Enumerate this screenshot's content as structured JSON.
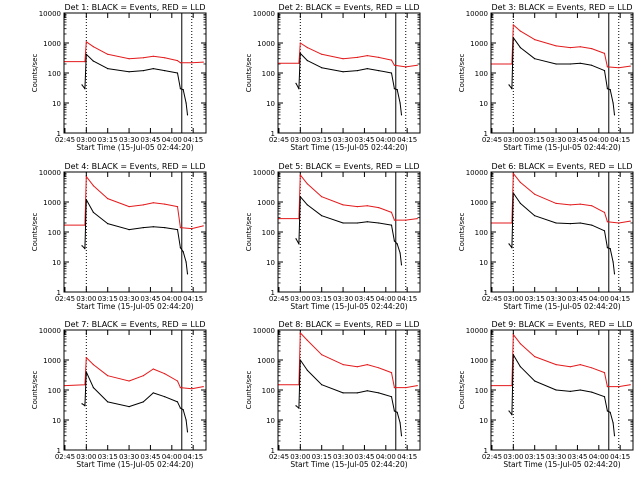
{
  "chart_data": {
    "type": "line",
    "layout": "3x3 grid of panels",
    "shared": {
      "ylabel": "Counts/sec",
      "xlabel": "Start Time (15-Jul-05 02:44:20)",
      "x_ticks": [
        "02:45",
        "03:00",
        "03:15",
        "03:30",
        "03:45",
        "04:00",
        "04:15"
      ],
      "y_ticks": [
        "1",
        "10",
        "100",
        "1000",
        "10000"
      ],
      "yscale": "log",
      "ylim": [
        1,
        10000
      ],
      "xlim": [
        "02:44:20",
        "04:24:00"
      ],
      "series_colors": {
        "events": "#000000",
        "lld": "#e31a1c"
      },
      "dotted_vertical_lines": [
        "03:00",
        "04:07",
        "04:14"
      ]
    },
    "panels": [
      {
        "title": "Det 1: BLACK = Events, RED = LLD",
        "lld": {
          "x": [
            "02:45",
            "02:59",
            "03:00",
            "03:05",
            "03:15",
            "03:30",
            "03:40",
            "03:47",
            "03:55",
            "04:04",
            "04:06",
            "04:14",
            "04:22"
          ],
          "y": [
            240,
            240,
            1100,
            750,
            420,
            300,
            320,
            360,
            320,
            260,
            220,
            220,
            230
          ]
        },
        "events": {
          "x": [
            "02:57",
            "02:59",
            "03:00",
            "03:05",
            "03:15",
            "03:30",
            "03:40",
            "03:47",
            "03:55",
            "04:04",
            "04:06",
            "04:08",
            "04:10",
            "04:11"
          ],
          "y": [
            40,
            30,
            420,
            250,
            140,
            110,
            120,
            140,
            120,
            100,
            30,
            28,
            10,
            4
          ]
        }
      },
      {
        "title": "Det 2: BLACK = Events, RED = LLD",
        "lld": {
          "x": [
            "02:45",
            "02:59",
            "03:00",
            "03:05",
            "03:15",
            "03:30",
            "03:40",
            "03:47",
            "03:55",
            "04:04",
            "04:06",
            "04:14",
            "04:22"
          ],
          "y": [
            210,
            210,
            1000,
            700,
            420,
            300,
            330,
            380,
            330,
            270,
            180,
            160,
            180
          ]
        },
        "events": {
          "x": [
            "02:57",
            "02:59",
            "03:00",
            "03:05",
            "03:15",
            "03:30",
            "03:40",
            "03:47",
            "03:55",
            "04:04",
            "04:06",
            "04:08",
            "04:10",
            "04:11"
          ],
          "y": [
            45,
            30,
            450,
            260,
            150,
            110,
            120,
            140,
            120,
            100,
            30,
            28,
            10,
            4
          ]
        }
      },
      {
        "title": "Det 3: BLACK = Events, RED = LLD",
        "lld": {
          "x": [
            "02:45",
            "02:59",
            "03:00",
            "03:05",
            "03:15",
            "03:30",
            "03:40",
            "03:47",
            "03:55",
            "04:04",
            "04:06",
            "04:14",
            "04:22"
          ],
          "y": [
            200,
            200,
            4000,
            2500,
            1300,
            800,
            700,
            750,
            650,
            450,
            160,
            150,
            170
          ]
        },
        "events": {
          "x": [
            "02:57",
            "02:59",
            "03:00",
            "03:05",
            "03:15",
            "03:30",
            "03:40",
            "03:47",
            "03:55",
            "04:04",
            "04:06",
            "04:08",
            "04:10",
            "04:11"
          ],
          "y": [
            40,
            30,
            1500,
            700,
            300,
            200,
            200,
            210,
            180,
            120,
            30,
            28,
            10,
            4
          ]
        }
      },
      {
        "title": "Det 4: BLACK = Events, RED = LLD",
        "lld": {
          "x": [
            "02:45",
            "02:59",
            "03:00",
            "03:05",
            "03:15",
            "03:30",
            "03:40",
            "03:47",
            "03:55",
            "04:04",
            "04:06",
            "04:14",
            "04:22"
          ],
          "y": [
            170,
            170,
            7000,
            3500,
            1300,
            700,
            800,
            950,
            850,
            700,
            140,
            130,
            160
          ]
        },
        "events": {
          "x": [
            "02:57",
            "02:59",
            "03:00",
            "03:05",
            "03:15",
            "03:30",
            "03:40",
            "03:47",
            "03:55",
            "04:04",
            "04:06",
            "04:08",
            "04:10",
            "04:11"
          ],
          "y": [
            35,
            28,
            1200,
            450,
            190,
            120,
            140,
            150,
            140,
            120,
            30,
            22,
            10,
            4
          ]
        }
      },
      {
        "title": "Det 5: BLACK = Events, RED = LLD",
        "lld": {
          "x": [
            "02:45",
            "02:59",
            "03:00",
            "03:05",
            "03:15",
            "03:30",
            "03:40",
            "03:47",
            "03:55",
            "04:04",
            "04:06",
            "04:14",
            "04:22"
          ],
          "y": [
            280,
            280,
            8000,
            4000,
            1500,
            800,
            700,
            750,
            650,
            450,
            250,
            250,
            280
          ]
        },
        "events": {
          "x": [
            "02:57",
            "02:59",
            "03:00",
            "03:05",
            "03:15",
            "03:30",
            "03:40",
            "03:47",
            "03:55",
            "04:04",
            "04:06",
            "04:08",
            "04:10",
            "04:11"
          ],
          "y": [
            60,
            40,
            1500,
            800,
            350,
            200,
            200,
            220,
            200,
            170,
            50,
            40,
            20,
            8
          ]
        }
      },
      {
        "title": "Det 6: BLACK = Events, RED = LLD",
        "lld": {
          "x": [
            "02:45",
            "02:59",
            "03:00",
            "03:05",
            "03:15",
            "03:30",
            "03:40",
            "03:47",
            "03:55",
            "04:04",
            "04:06",
            "04:14",
            "04:22"
          ],
          "y": [
            200,
            200,
            9000,
            4500,
            1800,
            900,
            800,
            850,
            750,
            450,
            220,
            200,
            230
          ]
        },
        "events": {
          "x": [
            "02:57",
            "02:59",
            "03:00",
            "03:05",
            "03:15",
            "03:30",
            "03:40",
            "03:47",
            "03:55",
            "04:04",
            "04:06",
            "04:08",
            "04:10",
            "04:11"
          ],
          "y": [
            40,
            30,
            2000,
            900,
            350,
            200,
            190,
            200,
            170,
            110,
            30,
            28,
            10,
            4
          ]
        }
      },
      {
        "title": "Det 7: BLACK = Events, RED = LLD",
        "lld": {
          "x": [
            "02:45",
            "02:59",
            "03:00",
            "03:05",
            "03:15",
            "03:30",
            "03:40",
            "03:47",
            "03:55",
            "04:04",
            "04:06",
            "04:14",
            "04:22"
          ],
          "y": [
            140,
            150,
            1200,
            700,
            300,
            200,
            300,
            500,
            350,
            200,
            120,
            110,
            130
          ]
        },
        "events": {
          "x": [
            "02:57",
            "02:59",
            "03:00",
            "03:05",
            "03:15",
            "03:30",
            "03:40",
            "03:47",
            "03:55",
            "04:04",
            "04:06",
            "04:08",
            "04:10",
            "04:11"
          ],
          "y": [
            35,
            30,
            400,
            120,
            40,
            28,
            40,
            80,
            60,
            40,
            25,
            22,
            10,
            4
          ]
        }
      },
      {
        "title": "Det 8: BLACK = Events, RED = LLD",
        "lld": {
          "x": [
            "02:45",
            "02:59",
            "03:00",
            "03:05",
            "03:15",
            "03:30",
            "03:40",
            "03:47",
            "03:55",
            "04:04",
            "04:06",
            "04:14",
            "04:22"
          ],
          "y": [
            150,
            150,
            8000,
            4500,
            1500,
            700,
            600,
            700,
            550,
            380,
            120,
            120,
            140
          ]
        },
        "events": {
          "x": [
            "02:57",
            "02:59",
            "03:00",
            "03:05",
            "03:15",
            "03:30",
            "03:40",
            "03:47",
            "03:55",
            "04:04",
            "04:06",
            "04:08",
            "04:10",
            "04:11"
          ],
          "y": [
            30,
            25,
            1000,
            450,
            150,
            80,
            80,
            95,
            80,
            60,
            20,
            18,
            8,
            3
          ]
        }
      },
      {
        "title": "Det 9: BLACK = Events, RED = LLD",
        "lld": {
          "x": [
            "02:45",
            "02:59",
            "03:00",
            "03:05",
            "03:15",
            "03:30",
            "03:40",
            "03:47",
            "03:55",
            "04:04",
            "04:06",
            "04:14",
            "04:22"
          ],
          "y": [
            140,
            140,
            7000,
            3500,
            1300,
            700,
            600,
            700,
            550,
            380,
            130,
            130,
            150
          ]
        },
        "events": {
          "x": [
            "02:57",
            "02:59",
            "03:00",
            "03:05",
            "03:15",
            "03:30",
            "03:40",
            "03:47",
            "03:55",
            "04:04",
            "04:06",
            "04:08",
            "04:10",
            "04:11"
          ],
          "y": [
            20,
            15,
            1500,
            600,
            200,
            100,
            90,
            100,
            85,
            60,
            20,
            18,
            8,
            3
          ]
        }
      }
    ]
  }
}
